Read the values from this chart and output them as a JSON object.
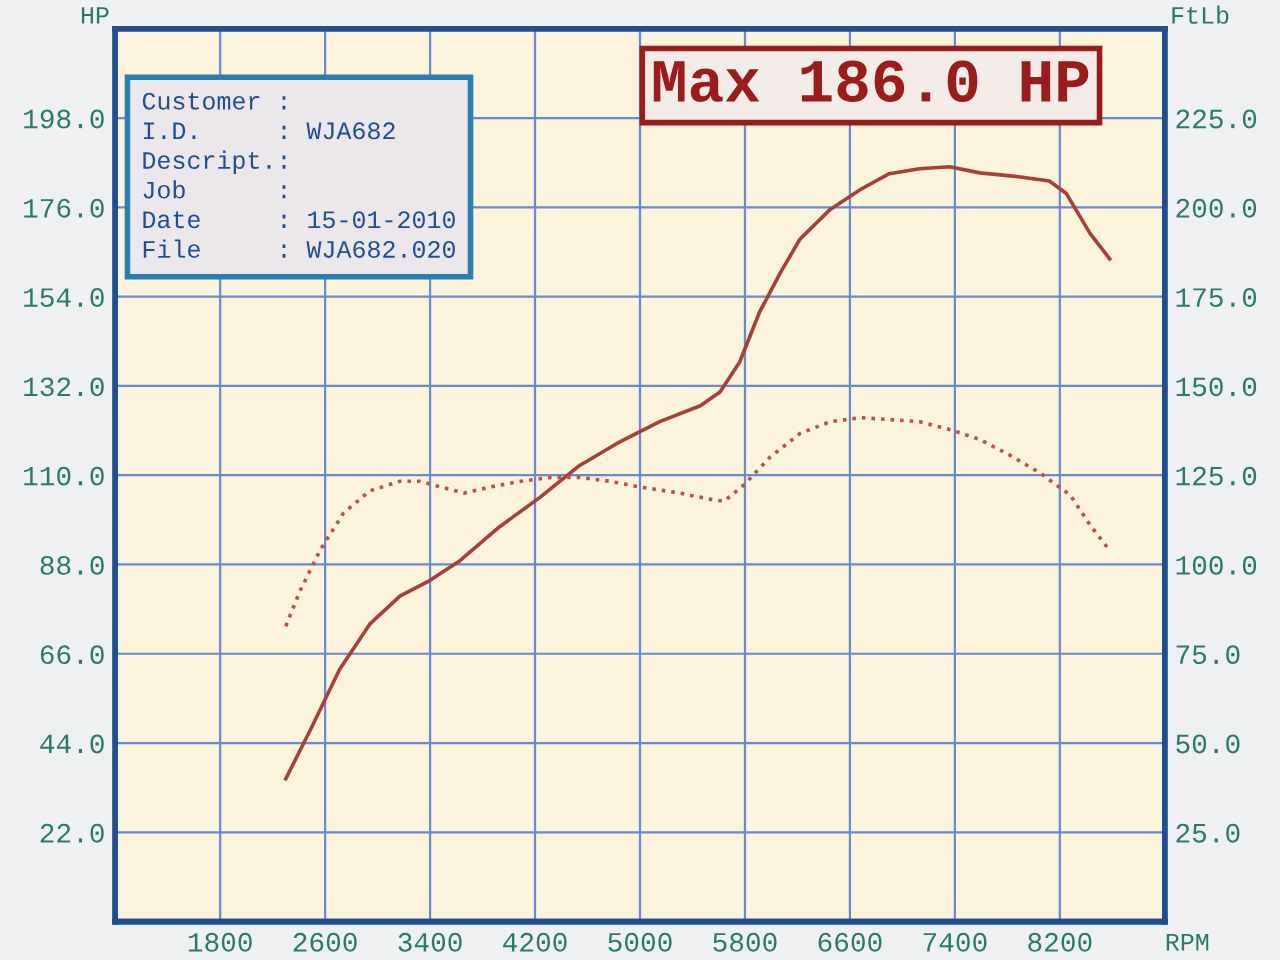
{
  "chart_data": {
    "type": "line",
    "title": "Max 186.0 HP",
    "xlabel": "RPM",
    "ylabel": "HP",
    "y2label": "FtLb",
    "annotations": [
      "Customer :",
      "I.D.     : WJA682",
      "Descript.:",
      "Job      :",
      "Date     : 15-01-2010",
      "File     : WJA682.020"
    ],
    "xlim": [
      1000,
      9000
    ],
    "ylim": [
      0,
      220
    ],
    "y2lim": [
      0,
      250
    ],
    "xticks": [
      1800,
      2600,
      3400,
      4200,
      5000,
      5800,
      6600,
      7400,
      8200
    ],
    "yticks": [
      {
        "value": 22,
        "label": "22.0"
      },
      {
        "value": 44,
        "label": "44.0"
      },
      {
        "value": 66,
        "label": "66.0"
      },
      {
        "value": 88,
        "label": "88.0"
      },
      {
        "value": 110,
        "label": "110.0"
      },
      {
        "value": 132,
        "label": "132.0"
      },
      {
        "value": 154,
        "label": "154.0"
      },
      {
        "value": 176,
        "label": "176.0"
      },
      {
        "value": 198,
        "label": "198.0"
      }
    ],
    "y2ticks": [
      {
        "value": 25,
        "label": "25.0"
      },
      {
        "value": 50,
        "label": "50.0"
      },
      {
        "value": 75,
        "label": "75.0"
      },
      {
        "value": 100,
        "label": "100.0"
      },
      {
        "value": 125,
        "label": "125.0"
      },
      {
        "value": 150,
        "label": "150.0"
      },
      {
        "value": 175,
        "label": "175.0"
      },
      {
        "value": 200,
        "label": "200.0"
      },
      {
        "value": 225,
        "label": "225.0"
      }
    ],
    "grid": true,
    "series": [
      {
        "color": "#a8403a",
        "line_style": "solid",
        "x": [
          2300,
          2490,
          2710,
          2940,
          3170,
          3400,
          3630,
          3930,
          4240,
          4540,
          4850,
          5150,
          5460,
          5610,
          5760,
          5910,
          6070,
          6220,
          6450,
          6680,
          6900,
          7130,
          7360,
          7590,
          7900,
          8120,
          8250,
          8430,
          8580
        ],
        "values": [
          35.2,
          47.4,
          62.1,
          73.3,
          80.2,
          84.1,
          89.0,
          97.3,
          104.6,
          112.4,
          118.3,
          123.2,
          127.1,
          130.5,
          137.9,
          150.1,
          159.9,
          168.2,
          175.5,
          180.4,
          184.3,
          185.5,
          186.0,
          184.5,
          183.5,
          182.5,
          179.4,
          169.6,
          163.3
        ]
      },
      {
        "color": "#b8524a",
        "line_style": "dotted",
        "axis": "y2",
        "x": [
          2300,
          2410,
          2560,
          2740,
          2940,
          3170,
          3320,
          3480,
          3660,
          3860,
          4090,
          4320,
          4540,
          4770,
          5000,
          5300,
          5530,
          5640,
          5790,
          5990,
          6220,
          6450,
          6680,
          6900,
          7130,
          7360,
          7590,
          7820,
          8050,
          8280,
          8430,
          8580
        ],
        "values": [
          82.7,
          92.7,
          103.9,
          114.4,
          120.6,
          123.3,
          123.3,
          121.7,
          120.0,
          121.7,
          123.3,
          124.4,
          124.4,
          123.3,
          121.7,
          120.0,
          118.3,
          117.7,
          122.2,
          130.0,
          136.7,
          140.0,
          141.1,
          140.6,
          140.0,
          137.8,
          135.0,
          130.6,
          125.6,
          119.4,
          111.1,
          103.9
        ]
      }
    ]
  }
}
